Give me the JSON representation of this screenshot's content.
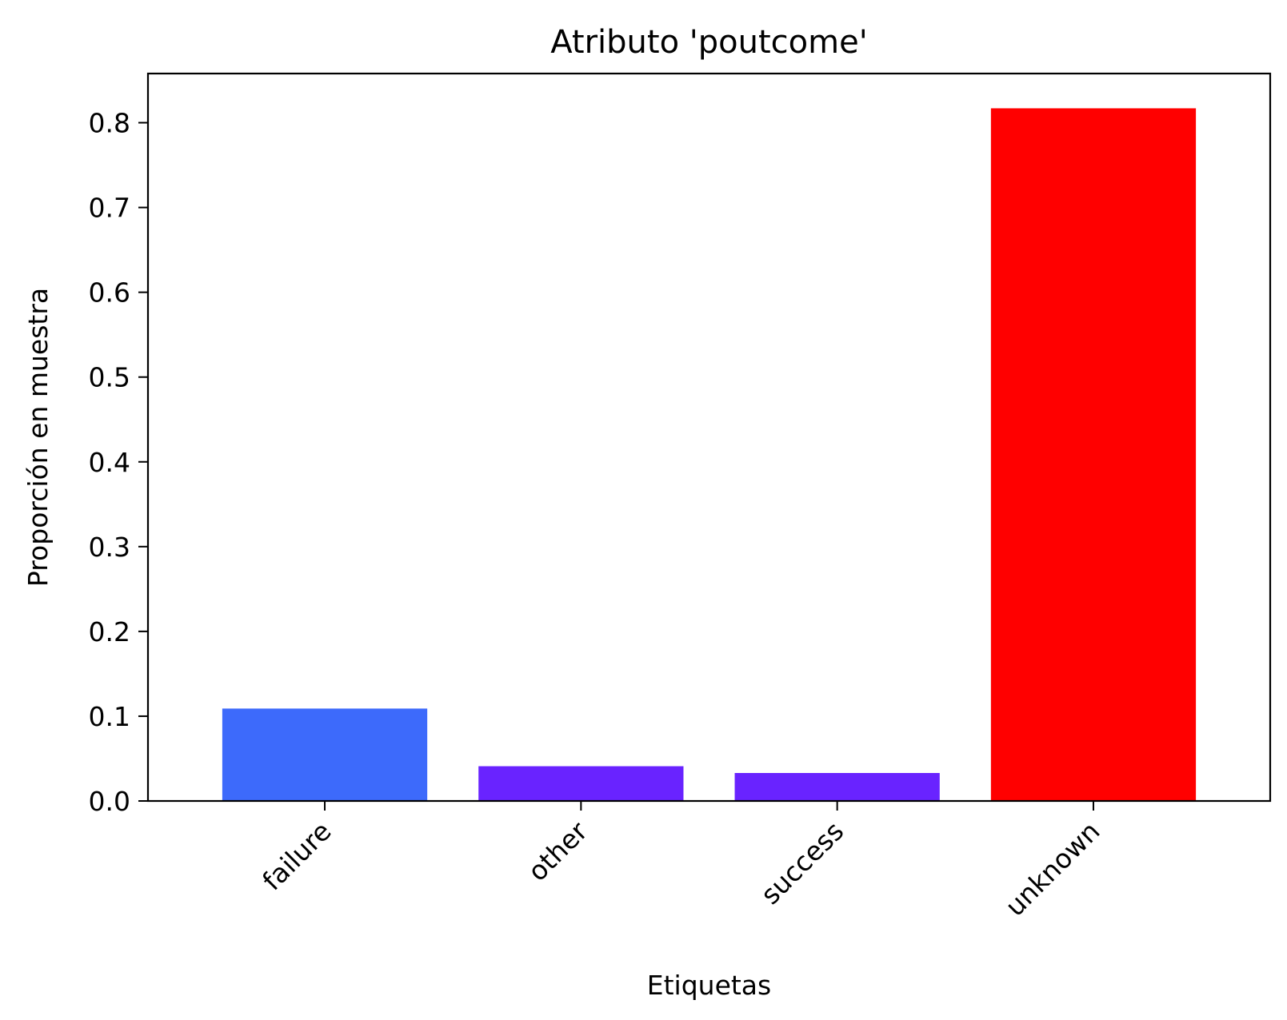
{
  "chart_data": {
    "type": "bar",
    "title": "Atributo 'poutcome'",
    "xlabel": "Etiquetas",
    "ylabel": "Proporción en muestra",
    "categories": [
      "failure",
      "other",
      "success",
      "unknown"
    ],
    "values": [
      0.109,
      0.041,
      0.033,
      0.817
    ],
    "colors": [
      "#3d6afb",
      "#6923ff",
      "#6923ff",
      "#ff0000"
    ],
    "ylim": [
      0,
      0.858
    ],
    "yticks": [
      0.0,
      0.1,
      0.2,
      0.3,
      0.4,
      0.5,
      0.6,
      0.7,
      0.8
    ],
    "ytick_labels": [
      "0.0",
      "0.1",
      "0.2",
      "0.3",
      "0.4",
      "0.5",
      "0.6",
      "0.7",
      "0.8"
    ],
    "grid": false,
    "legend": "none"
  }
}
